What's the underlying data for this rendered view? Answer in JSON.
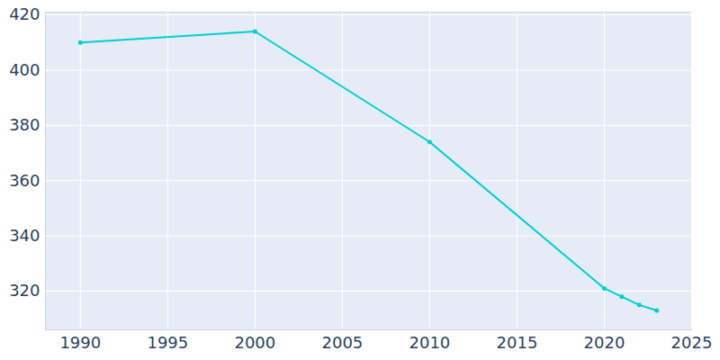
{
  "chart_data": {
    "type": "line",
    "x": [
      1990,
      2000,
      2010,
      2020,
      2021,
      2022,
      2023
    ],
    "values": [
      410,
      414,
      374,
      321,
      318,
      315,
      313
    ],
    "color": "#00ced1",
    "marker": "circle",
    "xlim": [
      1988,
      2025
    ],
    "xticks": [
      1990,
      1995,
      2000,
      2005,
      2010,
      2015,
      2020,
      2025
    ],
    "ylim": [
      306,
      421
    ],
    "yticks": [
      320,
      340,
      360,
      380,
      400,
      420
    ],
    "grid": true
  }
}
